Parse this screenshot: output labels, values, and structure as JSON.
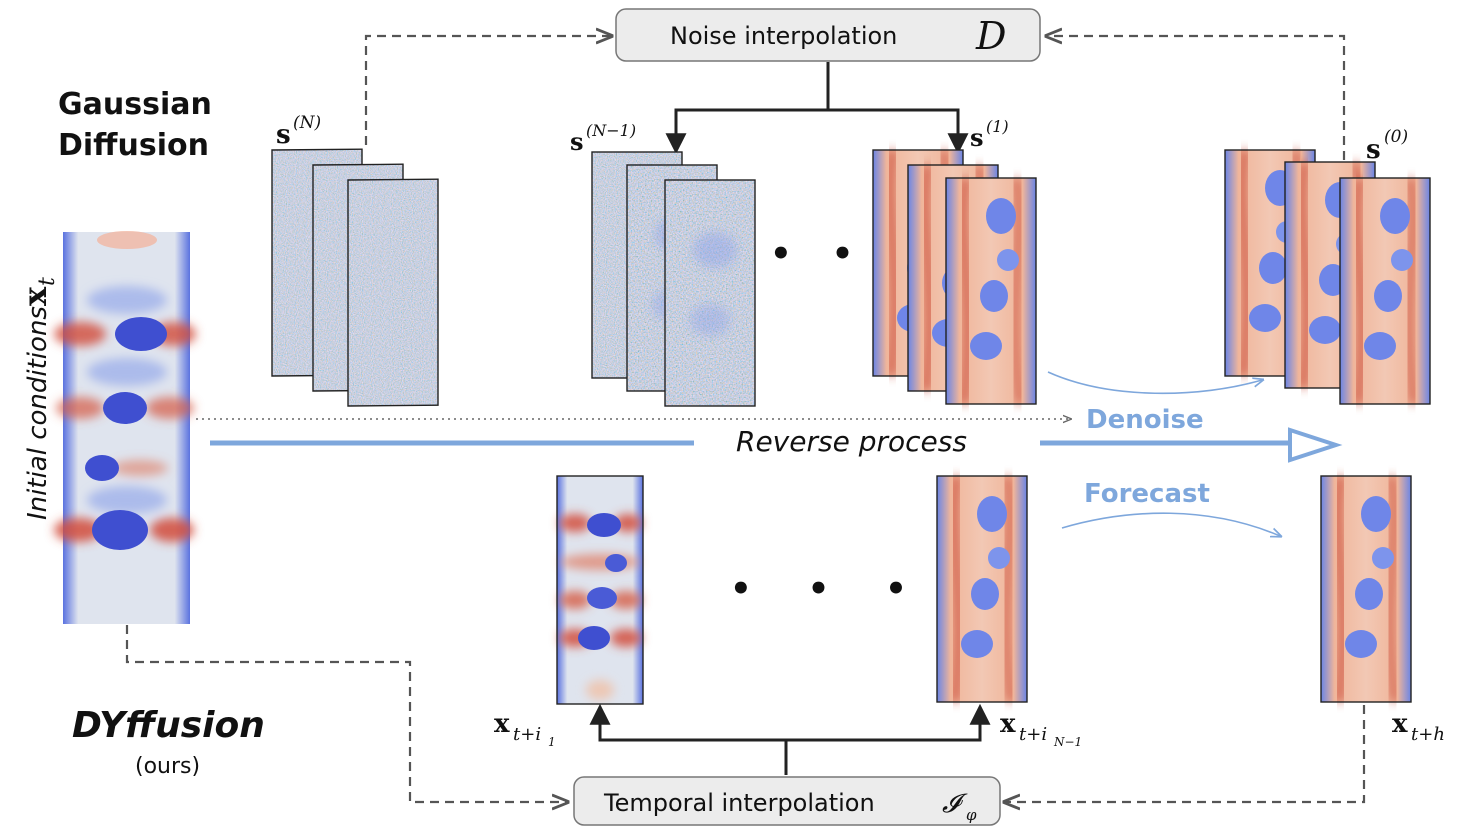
{
  "titles": {
    "gaussian_line1": "Gaussian",
    "gaussian_line2": "Diffusion",
    "dyffusion": "DYffusion",
    "ours": "(ours)"
  },
  "boxes": {
    "noise_text": "Noise interpolation",
    "noise_symbol": "D",
    "temporal_text": "Temporal interpolation",
    "temporal_symbol": "𝓘",
    "temporal_symbol_sub": "φ"
  },
  "labels": {
    "initial_conditions": "Initial conditions",
    "x_t": {
      "base": "x",
      "sub": "t"
    },
    "s_N": {
      "base": "s",
      "sup": "(N)"
    },
    "s_N1": {
      "base": "s",
      "sup": "(N−1)"
    },
    "s_1": {
      "base": "s",
      "sup": "(1)"
    },
    "s_0": {
      "base": "s",
      "sup": "(0)"
    },
    "x_ti1": {
      "base": "x",
      "sub": "t+i",
      "subsub": "1"
    },
    "x_tiN1": {
      "base": "x",
      "sub": "t+i",
      "subsub": "N−1"
    },
    "x_th": {
      "base": "x",
      "sub": "t+h"
    },
    "ellipsis_top": "• • •",
    "ellipsis_bottom": "• • •",
    "reverse_process": "Reverse process",
    "denoise": "Denoise",
    "forecast": "Forecast"
  },
  "colors": {
    "blob": "#3f4fd0",
    "blob_light": "#6f86e8",
    "red_band": "#d24a38",
    "warm": "#ea9274",
    "field_bg": "#dfe4ee",
    "accent_blue": "#7ea7dc",
    "arrow_dark": "#222222",
    "dashed": "#555555",
    "box_fill": "#ececec"
  }
}
